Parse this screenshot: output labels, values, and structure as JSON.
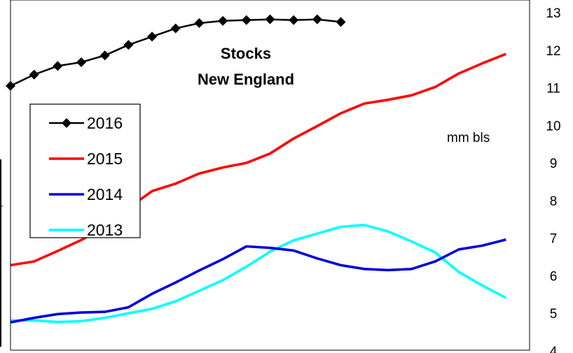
{
  "chart_data": {
    "type": "line",
    "title": "Stocks",
    "subtitle": "New England",
    "unit_label": "mm bls",
    "ylim": [
      4,
      13
    ],
    "y_ticks": [
      4,
      5,
      6,
      7,
      8,
      9,
      10,
      11,
      12,
      13
    ],
    "x_count": 23,
    "grid": false,
    "legend_position": "upper-left",
    "series": [
      {
        "name": "2016",
        "color": "#000000",
        "marker": "diamond",
        "values": [
          11.05,
          11.35,
          11.58,
          11.68,
          11.86,
          12.14,
          12.36,
          12.58,
          12.72,
          12.78,
          12.8,
          12.82,
          12.8,
          12.82,
          12.75
        ]
      },
      {
        "name": "2015",
        "color": "#ff0000",
        "marker": "none",
        "values": [
          6.28,
          6.38,
          6.66,
          6.95,
          7.3,
          7.8,
          8.25,
          8.45,
          8.72,
          8.88,
          9.0,
          9.25,
          9.65,
          9.98,
          10.32,
          10.58,
          10.68,
          10.8,
          11.02,
          11.38,
          11.65,
          11.9
        ]
      },
      {
        "name": "2014",
        "color": "#0000d8",
        "marker": "none",
        "values": [
          4.76,
          4.88,
          4.98,
          5.02,
          5.04,
          5.16,
          5.52,
          5.82,
          6.14,
          6.44,
          6.78,
          6.74,
          6.67,
          6.46,
          6.28,
          6.18,
          6.15,
          6.18,
          6.38,
          6.7,
          6.8,
          6.96
        ]
      },
      {
        "name": "2013",
        "color": "#00ffff",
        "marker": "none",
        "values": [
          4.81,
          4.81,
          4.77,
          4.79,
          4.88,
          5.0,
          5.12,
          5.32,
          5.6,
          5.88,
          6.24,
          6.64,
          6.94,
          7.12,
          7.3,
          7.35,
          7.18,
          6.91,
          6.62,
          6.1,
          5.74,
          5.41
        ]
      }
    ]
  }
}
